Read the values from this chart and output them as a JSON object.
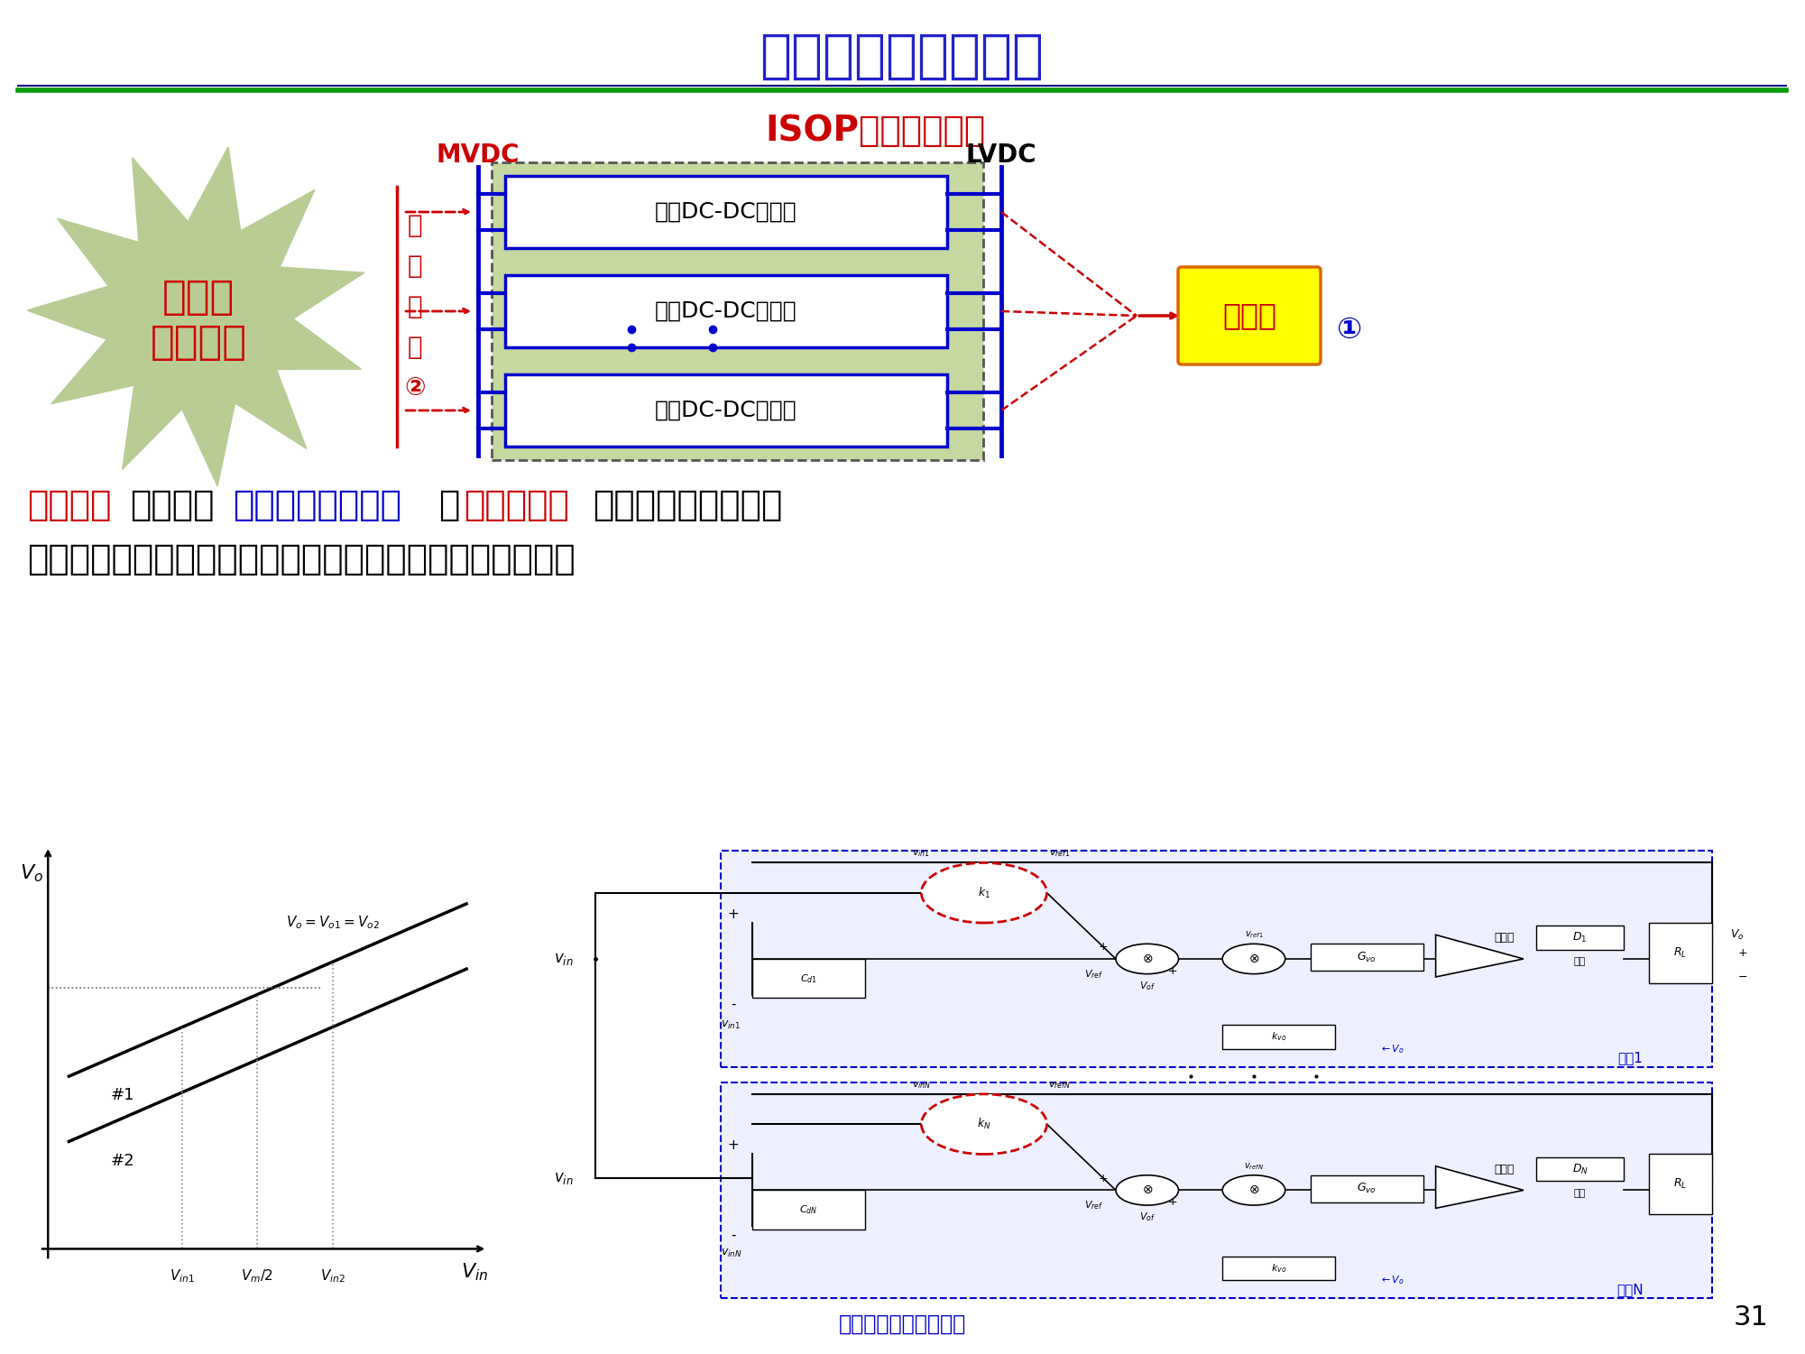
{
  "title": "多模块均衡控制策略",
  "title_color": "#2222cc",
  "title_underline_color": "#009900",
  "bg_color": "#ffffff",
  "slide_number": "31",
  "footer_text": "《电工技术学报》发布",
  "isop_label": "ISOP型直流变压器",
  "mvdc_label": "MVDC",
  "lvdc_label": "LVDC",
  "dc_converter_label": "双向DC-DC变换器",
  "bus_label_chars": [
    "均",
    "压",
    "母",
    "线",
    "②"
  ],
  "star_line1": "多模块",
  "star_line2": "串联均压",
  "star_color": "#b8cc94",
  "controller_label": "控制器",
  "controller_bg": "#ffff00",
  "innovation_seg1": "创新点：",
  "innovation_seg2": "提出基于",
  "innovation_seg3": "输出电压上翘特性",
  "innovation_seg4": "的",
  "innovation_seg5": "无互联均压",
  "innovation_seg6": "控制策略，模块只采",
  "innovation_line2": "样自身信息，去除均衡控制互联线，从而提高系统可靠性。",
  "mod1_label": "模块1",
  "modN_label": "模块N",
  "comparator_label": "比较器",
  "drive_label": "驱动"
}
